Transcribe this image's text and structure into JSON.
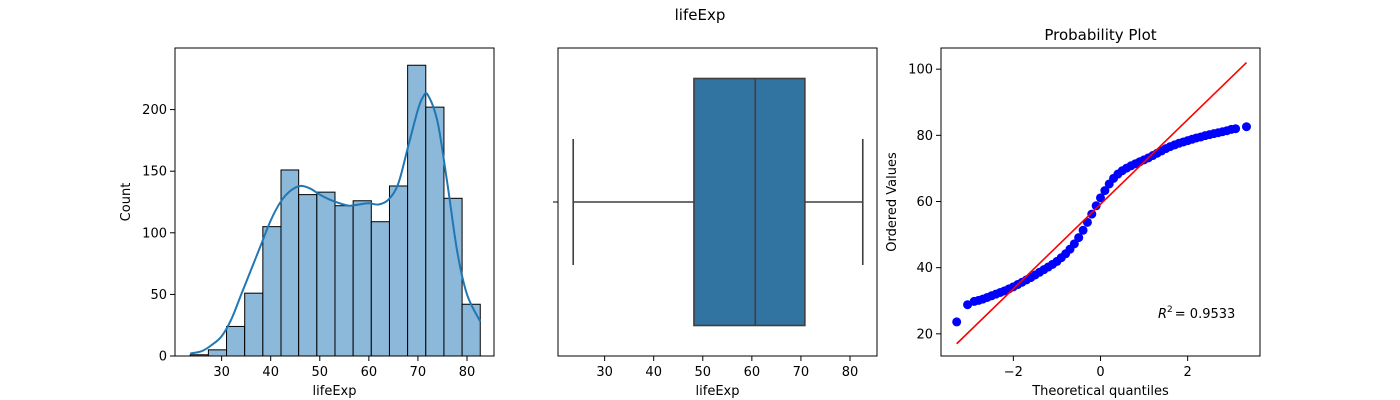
{
  "suptitle": "lifeExp",
  "colors": {
    "hist_fill": "#8cb8d9",
    "hist_edge": "#000000",
    "kde_line": "#1f77b4",
    "box_fill": "#3274a1",
    "box_edge": "#3f3f3f",
    "prob_points": "#0000ff",
    "prob_line": "#ff0000"
  },
  "chart_data": [
    {
      "type": "bar",
      "subtype": "histogram-with-kde",
      "xlabel": "lifeExp",
      "ylabel": "Count",
      "xlim": [
        20.5,
        85.5
      ],
      "ylim": [
        0,
        250
      ],
      "xticks": [
        30,
        40,
        50,
        60,
        70,
        80
      ],
      "yticks": [
        0,
        50,
        100,
        150,
        200
      ],
      "bins": [
        {
          "x0": 23.6,
          "x1": 27.3,
          "count": 1
        },
        {
          "x0": 27.3,
          "x1": 31.0,
          "count": 5
        },
        {
          "x0": 31.0,
          "x1": 34.7,
          "count": 24
        },
        {
          "x0": 34.7,
          "x1": 38.4,
          "count": 51
        },
        {
          "x0": 38.4,
          "x1": 42.1,
          "count": 105
        },
        {
          "x0": 42.1,
          "x1": 45.7,
          "count": 151
        },
        {
          "x0": 45.7,
          "x1": 49.4,
          "count": 131
        },
        {
          "x0": 49.4,
          "x1": 53.1,
          "count": 133
        },
        {
          "x0": 53.1,
          "x1": 56.8,
          "count": 122
        },
        {
          "x0": 56.8,
          "x1": 60.5,
          "count": 126
        },
        {
          "x0": 60.5,
          "x1": 64.2,
          "count": 109
        },
        {
          "x0": 64.2,
          "x1": 67.9,
          "count": 138
        },
        {
          "x0": 67.9,
          "x1": 71.6,
          "count": 236
        },
        {
          "x0": 71.6,
          "x1": 75.3,
          "count": 202
        },
        {
          "x0": 75.3,
          "x1": 79.0,
          "count": 128
        },
        {
          "x0": 79.0,
          "x1": 82.7,
          "count": 42
        }
      ],
      "kde": {
        "x": [
          23.6,
          26,
          28,
          30,
          32,
          34,
          36,
          38,
          40,
          42,
          44,
          46,
          48,
          50,
          52,
          54,
          56,
          58,
          60,
          62,
          64,
          66,
          68,
          70,
          71,
          72,
          74,
          76,
          78,
          80,
          82.7
        ],
        "y": [
          2,
          4,
          9,
          16,
          30,
          50,
          70,
          90,
          110,
          125,
          134,
          138,
          136,
          131,
          127,
          124,
          122,
          123,
          124,
          123,
          127,
          140,
          170,
          200,
          210,
          212,
          190,
          140,
          85,
          50,
          28
        ]
      }
    },
    {
      "type": "box",
      "xlabel": "lifeExp",
      "xlim": [
        20.5,
        85.5
      ],
      "xticks": [
        30,
        40,
        50,
        60,
        70,
        80
      ],
      "whisker_low": 23.6,
      "q1": 48.2,
      "median": 60.7,
      "q3": 70.8,
      "whisker_high": 82.6
    },
    {
      "type": "scatter",
      "title": "Probability Plot",
      "xlabel": "Theoretical quantiles",
      "ylabel": "Ordered Values",
      "xlim": [
        -3.66,
        3.66
      ],
      "ylim": [
        13.3,
        106.4
      ],
      "xticks": [
        -2,
        0,
        2
      ],
      "yticks": [
        20,
        40,
        60,
        80,
        100
      ],
      "annotation": {
        "text": "= 0.9533",
        "symbol": "R",
        "superscript": "2"
      },
      "fit_line": {
        "x": [
          -3.3,
          3.35
        ],
        "y": [
          17,
          102
        ]
      },
      "points": [
        [
          -3.3,
          23.6
        ],
        [
          -3.05,
          28.8
        ],
        [
          -2.9,
          29.8
        ],
        [
          -2.8,
          30.1
        ],
        [
          -2.7,
          30.5
        ],
        [
          -2.6,
          31.0
        ],
        [
          -2.5,
          31.5
        ],
        [
          -2.4,
          32.0
        ],
        [
          -2.3,
          32.5
        ],
        [
          -2.2,
          33.0
        ],
        [
          -2.1,
          33.6
        ],
        [
          -2.0,
          34.2
        ],
        [
          -1.9,
          34.9
        ],
        [
          -1.8,
          35.6
        ],
        [
          -1.7,
          36.3
        ],
        [
          -1.6,
          37.0
        ],
        [
          -1.5,
          37.8
        ],
        [
          -1.4,
          38.6
        ],
        [
          -1.3,
          39.4
        ],
        [
          -1.2,
          40.2
        ],
        [
          -1.1,
          41.0
        ],
        [
          -1.0,
          41.9
        ],
        [
          -0.9,
          43.0
        ],
        [
          -0.8,
          44.2
        ],
        [
          -0.7,
          45.6
        ],
        [
          -0.6,
          47.2
        ],
        [
          -0.5,
          49.1
        ],
        [
          -0.4,
          51.3
        ],
        [
          -0.3,
          53.7
        ],
        [
          -0.2,
          56.2
        ],
        [
          -0.1,
          58.7
        ],
        [
          0.0,
          61.1
        ],
        [
          0.1,
          63.3
        ],
        [
          0.2,
          65.3
        ],
        [
          0.3,
          67.0
        ],
        [
          0.4,
          68.3
        ],
        [
          0.5,
          69.3
        ],
        [
          0.6,
          70.1
        ],
        [
          0.7,
          70.8
        ],
        [
          0.8,
          71.4
        ],
        [
          0.9,
          72.0
        ],
        [
          1.0,
          72.6
        ],
        [
          1.1,
          73.2
        ],
        [
          1.2,
          73.9
        ],
        [
          1.3,
          74.6
        ],
        [
          1.4,
          75.3
        ],
        [
          1.5,
          76.0
        ],
        [
          1.6,
          76.6
        ],
        [
          1.7,
          77.1
        ],
        [
          1.8,
          77.6
        ],
        [
          1.9,
          78.0
        ],
        [
          2.0,
          78.4
        ],
        [
          2.1,
          78.8
        ],
        [
          2.2,
          79.2
        ],
        [
          2.3,
          79.5
        ],
        [
          2.4,
          79.9
        ],
        [
          2.5,
          80.2
        ],
        [
          2.6,
          80.5
        ],
        [
          2.7,
          80.8
        ],
        [
          2.8,
          81.1
        ],
        [
          2.9,
          81.4
        ],
        [
          3.0,
          81.8
        ],
        [
          3.1,
          82.0
        ],
        [
          3.35,
          82.6
        ]
      ]
    }
  ]
}
